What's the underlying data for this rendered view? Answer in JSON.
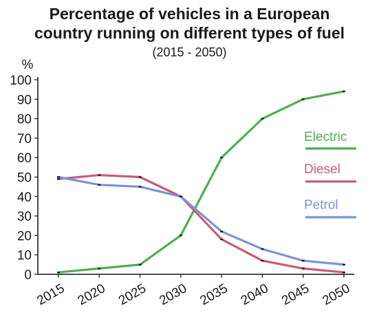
{
  "chart_data": {
    "type": "line",
    "title_line1": "Percentage of vehicles in a European",
    "title_line2": "country running on different types of fuel",
    "subtitle": "(2015 - 2050)",
    "ylabel": "%",
    "xlabel": "",
    "x": [
      2015,
      2020,
      2025,
      2030,
      2035,
      2040,
      2045,
      2050
    ],
    "x_tick_labels": [
      "2015",
      "2020",
      "2025",
      "2030",
      "2035",
      "2040",
      "2045",
      "2050"
    ],
    "ylim": [
      0,
      100
    ],
    "y_ticks": [
      0,
      10,
      20,
      30,
      40,
      50,
      60,
      70,
      80,
      90,
      100
    ],
    "grid": false,
    "legend_placement": "right",
    "series": [
      {
        "name": "Electric",
        "color": "#4caf50",
        "values": [
          1,
          3,
          5,
          20,
          60,
          80,
          90,
          94
        ]
      },
      {
        "name": "Diesel",
        "color": "#c75b77",
        "values": [
          49,
          51,
          50,
          40,
          18,
          7,
          3,
          1
        ]
      },
      {
        "name": "Petrol",
        "color": "#7b93d6",
        "values": [
          50,
          46,
          45,
          40,
          22,
          13,
          7,
          5
        ]
      }
    ]
  }
}
